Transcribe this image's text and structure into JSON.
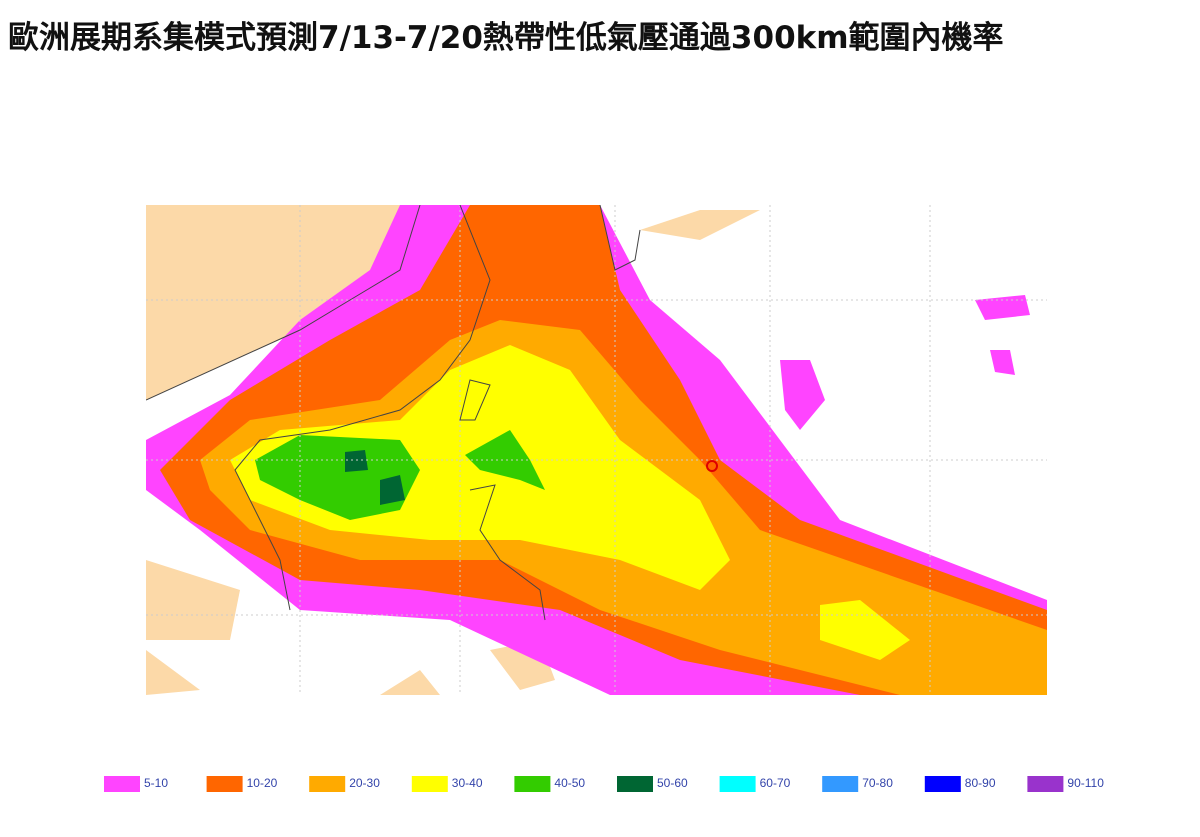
{
  "header": {
    "title": "歐洲展期系集模式預測7/13-7/20熱帶性低氣壓通過300km範圍內機率"
  },
  "legend": {
    "items": [
      {
        "label": "5-10",
        "color": "#ff44ff"
      },
      {
        "label": "10-20",
        "color": "#ff6600"
      },
      {
        "label": "20-30",
        "color": "#ffaa00"
      },
      {
        "label": "30-40",
        "color": "#ffff00"
      },
      {
        "label": "40-50",
        "color": "#33cc00"
      },
      {
        "label": "50-60",
        "color": "#006633"
      },
      {
        "label": "60-70",
        "color": "#00ffff"
      },
      {
        "label": "70-80",
        "color": "#3399ff"
      },
      {
        "label": "80-90",
        "color": "#0000ff"
      },
      {
        "label": "90-110",
        "color": "#9933cc"
      }
    ]
  }
}
